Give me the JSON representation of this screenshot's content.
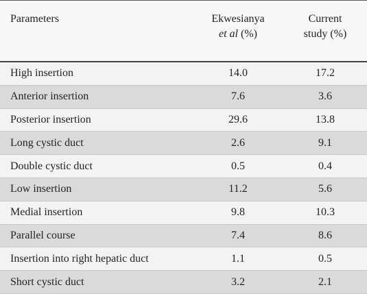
{
  "table": {
    "header": {
      "parameters": "Parameters",
      "ekwesianya": [
        "Ekwesianya",
        "et al",
        "(%)"
      ],
      "current": [
        "Current",
        "study (%)"
      ]
    },
    "rows": [
      [
        "High insertion",
        "14.0",
        "17.2"
      ],
      [
        "Anterior insertion",
        "7.6",
        "3.6"
      ],
      [
        "Posterior insertion",
        "29.6",
        "13.8"
      ],
      [
        "Long cystic duct",
        "2.6",
        "9.1"
      ],
      [
        "Double cystic duct",
        "0.5",
        "0.4"
      ],
      [
        "Low insertion",
        "11.2",
        "5.6"
      ],
      [
        "Medial insertion",
        "9.8",
        "10.3"
      ],
      [
        "Parallel course",
        "7.4",
        "8.6"
      ],
      [
        "Insertion into right hepatic duct",
        "1.1",
        "0.5"
      ],
      [
        "Short cystic duct",
        "3.2",
        "2.1"
      ]
    ]
  }
}
